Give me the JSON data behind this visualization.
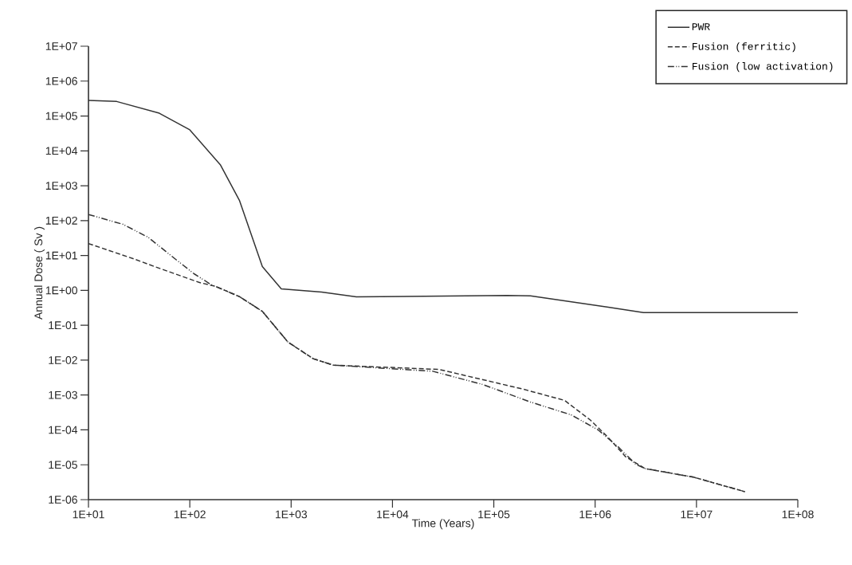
{
  "chart_data": {
    "type": "line",
    "xlabel": "Time (Years)",
    "ylabel": "Annual Dose ( Sv )",
    "log": "xy",
    "grid": false,
    "legend": "top right",
    "marker": "none",
    "xlim": [
      10,
      100000000
    ],
    "ylim": [
      1e-06,
      10000000
    ],
    "xticks": [
      {
        "value": 10,
        "label": "1E+01"
      },
      {
        "value": 100,
        "label": "1E+02"
      },
      {
        "value": 1000,
        "label": "1E+03"
      },
      {
        "value": 10000,
        "label": "1E+04"
      },
      {
        "value": 100000,
        "label": "1E+05"
      },
      {
        "value": 1000000,
        "label": "1E+06"
      },
      {
        "value": 10000000,
        "label": "1E+07"
      },
      {
        "value": 100000000,
        "label": "1E+08"
      }
    ],
    "yticks": [
      {
        "value": 1e-06,
        "label": "1E-06"
      },
      {
        "value": 1e-05,
        "label": "1E-05"
      },
      {
        "value": 0.0001,
        "label": "1E-04"
      },
      {
        "value": 0.001,
        "label": "1E-03"
      },
      {
        "value": 0.01,
        "label": "1E-02"
      },
      {
        "value": 0.1,
        "label": "1E-01"
      },
      {
        "value": 1,
        "label": "1E+00"
      },
      {
        "value": 10,
        "label": "1E+01"
      },
      {
        "value": 100,
        "label": "1E+02"
      },
      {
        "value": 1000,
        "label": "1E+03"
      },
      {
        "value": 10000,
        "label": "1E+04"
      },
      {
        "value": 100000,
        "label": "1E+05"
      },
      {
        "value": 1000000,
        "label": "1E+06"
      },
      {
        "value": 10000000,
        "label": "1E+07"
      }
    ],
    "series": [
      {
        "name": "PWR",
        "color": "#333333",
        "line_style": "solid",
        "x": [
          10,
          19,
          50,
          100,
          200,
          310,
          520,
          800,
          2000,
          4400,
          135000,
          230000,
          1350000,
          3000000,
          100000000
        ],
        "values": [
          280000,
          260000,
          120000,
          40000,
          4000,
          370,
          4.8,
          1.1,
          0.9,
          0.65,
          0.72,
          0.7,
          0.33,
          0.23,
          0.23
        ]
      },
      {
        "name": "Fusion (ferritic)",
        "color": "#333333",
        "line_style": "dashed",
        "x": [
          10,
          28,
          50,
          123,
          180,
          310,
          520,
          930,
          1650,
          2600,
          29000,
          190000,
          500000,
          900000,
          1350000,
          2000000,
          3100000,
          9400000,
          17000000,
          30000000
        ],
        "values": [
          22,
          8,
          4.3,
          1.7,
          1.3,
          0.66,
          0.25,
          0.033,
          0.011,
          0.0072,
          0.0054,
          0.0015,
          0.0007,
          0.00019,
          6e-05,
          1.7e-05,
          7.8e-06,
          4.4e-06,
          2.7e-06,
          1.7e-06
        ]
      },
      {
        "name": "Fusion (low activation)",
        "color": "#333333",
        "line_style": "dashdot",
        "x": [
          10,
          22,
          39,
          65,
          110,
          160,
          310,
          520,
          930,
          1650,
          2600,
          25000,
          78000,
          230000,
          580000,
          1070000,
          1700000,
          2500000,
          3100000,
          9400000,
          17000000,
          30000000
        ],
        "values": [
          150,
          78,
          33,
          10,
          3,
          1.5,
          0.66,
          0.25,
          0.033,
          0.011,
          0.0072,
          0.0048,
          0.002,
          0.00063,
          0.00027,
          0.0001,
          3.2e-05,
          1.05e-05,
          7.8e-06,
          4.4e-06,
          2.7e-06,
          1.7e-06
        ]
      }
    ]
  }
}
